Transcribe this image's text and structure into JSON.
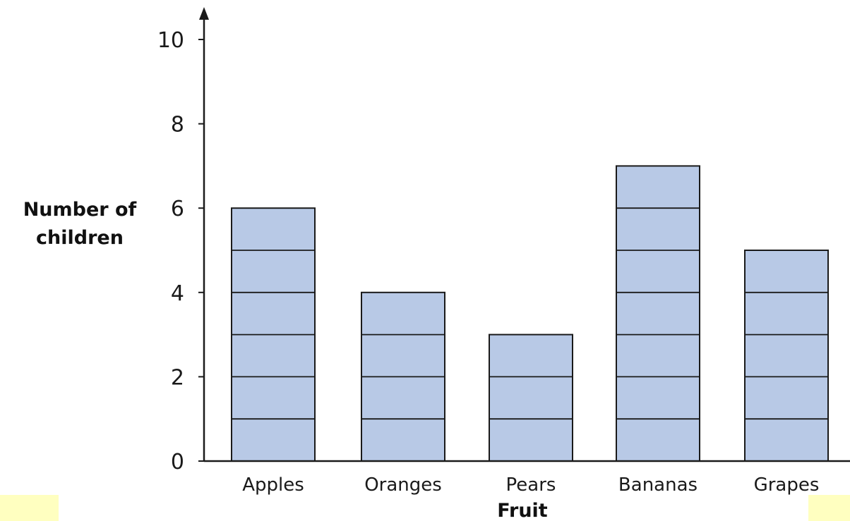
{
  "chart_data": {
    "type": "bar",
    "categories": [
      "Apples",
      "Oranges",
      "Pears",
      "Bananas",
      "Grapes"
    ],
    "values": [
      6,
      4,
      3,
      7,
      5
    ],
    "title": "",
    "xlabel": "Fruit",
    "ylabel_lines": [
      "Number of",
      "children"
    ],
    "ylim": [
      0,
      10
    ],
    "yticks": [
      0,
      2,
      4,
      6,
      8,
      10
    ],
    "ytick_labels": [
      "0",
      "2",
      "4",
      "6",
      "8",
      "10"
    ],
    "grid": false,
    "legend": "none",
    "bar_color": "#b8c9e6",
    "bar_outline": "#1a1a1a",
    "bars_divided_into_units": true
  },
  "highlights": {
    "color": "#ffffc0"
  }
}
